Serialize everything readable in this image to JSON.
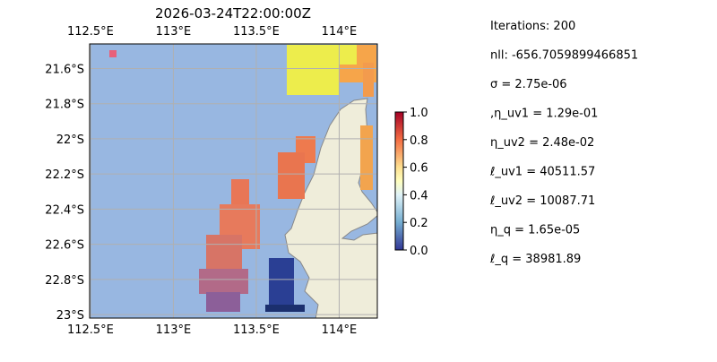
{
  "title": "2026-03-24T22:00:00Z",
  "map": {
    "xlim": [
      112.495,
      114.23
    ],
    "ylim": [
      -23.02,
      -21.46
    ],
    "lon_ticks": [
      {
        "value": 112.5,
        "label": "112.5°E"
      },
      {
        "value": 113,
        "label": "113°E"
      },
      {
        "value": 113.5,
        "label": "113.5°E"
      },
      {
        "value": 114,
        "label": "114°E"
      }
    ],
    "lat_ticks": [
      {
        "value": -21.6,
        "label": "21.6°S"
      },
      {
        "value": -21.8,
        "label": "21.8°S"
      },
      {
        "value": -22,
        "label": "22°S"
      },
      {
        "value": -22.2,
        "label": "22.2°S"
      },
      {
        "value": -22.4,
        "label": "22.4°S"
      },
      {
        "value": -22.6,
        "label": "22.6°S"
      },
      {
        "value": -22.8,
        "label": "22.8°S"
      },
      {
        "value": -23,
        "label": "23°S"
      }
    ]
  },
  "colorbar": {
    "lim": [
      0,
      1
    ],
    "ticks": [
      {
        "value": 0,
        "label": "0.0"
      },
      {
        "value": 0.2,
        "label": "0.2"
      },
      {
        "value": 0.4,
        "label": "0.4"
      },
      {
        "value": 0.6,
        "label": "0.6"
      },
      {
        "value": 0.8,
        "label": "0.8"
      },
      {
        "value": 1,
        "label": "1.0"
      }
    ]
  },
  "info": [
    "Iterations: 200",
    "nll: -656.7059899466851",
    "σ = 2.75e-06",
    ",η_uv1 = 1.29e-01",
    "η_uv2 = 2.48e-02",
    "ℓ_uv1 = 40511.57",
    "ℓ_uv2 = 10087.71",
    "η_q = 1.65e-05",
    "ℓ_q = 38981.89"
  ]
}
